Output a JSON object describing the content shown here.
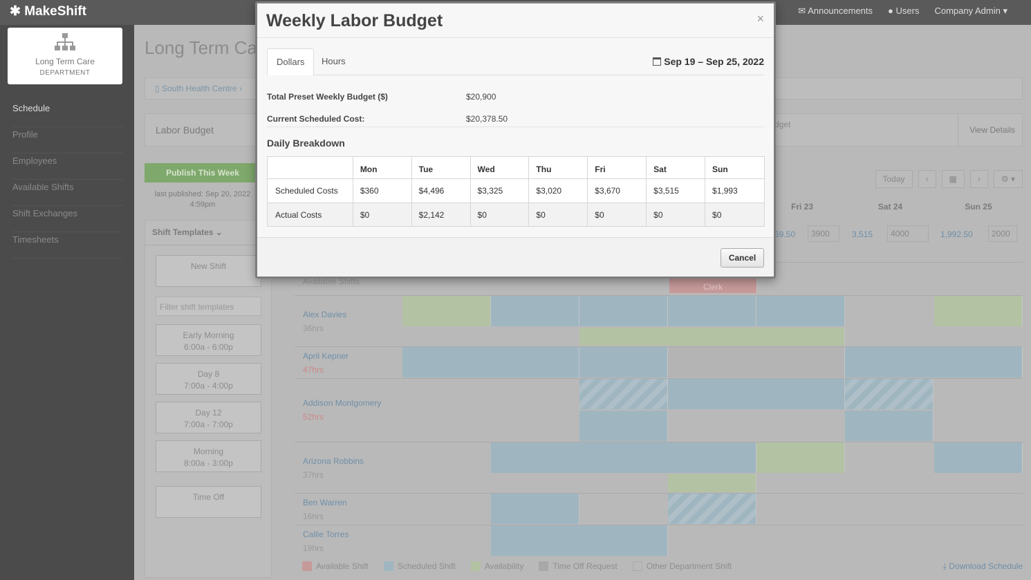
{
  "app": {
    "name": "MakeShift"
  },
  "topnav": {
    "announcements": "Announcements",
    "users": "Users",
    "company_admin": "Company Admin"
  },
  "department": {
    "name": "Long Term Care",
    "type": "DEPARTMENT"
  },
  "sidebar": {
    "items": [
      "Schedule",
      "Profile",
      "Employees",
      "Available Shifts",
      "Shift Exchanges",
      "Timesheets"
    ]
  },
  "page": {
    "title": "Long Term Ca",
    "breadcrumb": "South Health Centre"
  },
  "labor_bar": {
    "title": "Labor Budget",
    "budget_label": "dget",
    "view_details": "View Details"
  },
  "publish": {
    "label": "Publish This Week",
    "info_line1": "last published: Sep 20, 2022",
    "info_line2": "4:59pm"
  },
  "templates": {
    "header": "Shift Templates",
    "new_shift": "New Shift",
    "filter_placeholder": "Filter shift templates",
    "items": [
      {
        "name": "Early Morning",
        "time": "6:00a - 6:00p"
      },
      {
        "name": "Day 8",
        "time": "7:00a - 4:00p"
      },
      {
        "name": "Day 12",
        "time": "7:00a - 7:00p"
      },
      {
        "name": "Morning",
        "time": "8:00a - 3:00p"
      }
    ],
    "time_off": "Time Off"
  },
  "toolbar": {
    "today": "Today"
  },
  "grid": {
    "day_headers": [
      "Fri 23",
      "Sat 24",
      "Sun 25"
    ],
    "budget_row": {
      "fri": {
        "value": "69.50",
        "input": "3900"
      },
      "sat": {
        "value": "3,515",
        "input": "4000"
      },
      "sun": {
        "value": "1,992.50",
        "input": "2000"
      }
    },
    "available_label": "Available Shifts",
    "available_cell": "Clerk",
    "employees": [
      {
        "name": "Alex Davies",
        "hours": "36hrs"
      },
      {
        "name": "April Kepner",
        "hours": "47hrs"
      },
      {
        "name": "Addison Montgomery",
        "hours": "52hrs"
      },
      {
        "name": "Arizona Robbins",
        "hours": "37hrs"
      },
      {
        "name": "Ben Warren",
        "hours": "16hrs"
      },
      {
        "name": "Callie Torres",
        "hours": "19hrs"
      }
    ]
  },
  "legend": {
    "items": [
      "Available Shift",
      "Scheduled Shift",
      "Availability",
      "Time Off Request",
      "Other Department Shift"
    ],
    "download": "Download Schedule"
  },
  "modal": {
    "title": "Weekly Labor Budget",
    "close": "×",
    "tabs": [
      "Dollars",
      "Hours"
    ],
    "date_range": "Sep 19 – Sep 25, 2022",
    "total_label": "Total Preset Weekly Budget ($)",
    "total_value": "$20,900",
    "current_label": "Current Scheduled Cost:",
    "current_value": "$20,378.50",
    "breakdown_title": "Daily Breakdown",
    "days": [
      "Mon",
      "Tue",
      "Wed",
      "Thu",
      "Fri",
      "Sat",
      "Sun"
    ],
    "rows": [
      {
        "label": "Scheduled Costs",
        "values": [
          "$360",
          "$4,496",
          "$3,325",
          "$3,020",
          "$3,670",
          "$3,515",
          "$1,993"
        ]
      },
      {
        "label": "Actual Costs",
        "values": [
          "$0",
          "$2,142",
          "$0",
          "$0",
          "$0",
          "$0",
          "$0"
        ]
      }
    ],
    "cancel": "Cancel"
  },
  "colors": {
    "accent": "#3ea9d6",
    "publish": "#7fa86c",
    "scheduled": "#c8e6f3",
    "availability": "#e1f0cf"
  }
}
